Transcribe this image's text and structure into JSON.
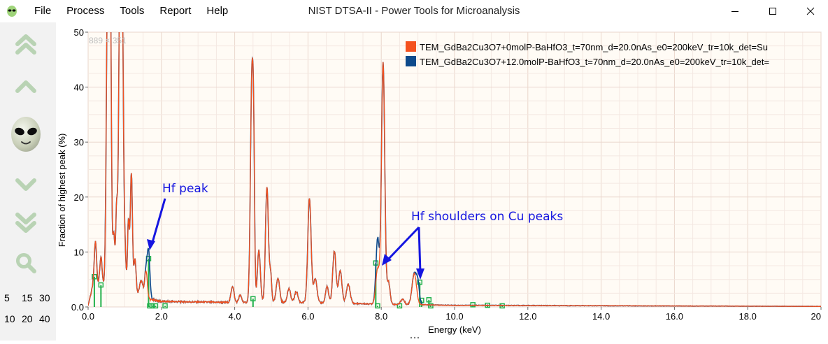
{
  "window": {
    "title": "NIST DTSA-II - Power Tools for Microanalysis",
    "app_icon": "alien-icon",
    "controls": [
      "minimize-icon",
      "maximize-icon",
      "close-icon"
    ]
  },
  "menu": [
    "File",
    "Process",
    "Tools",
    "Report",
    "Help"
  ],
  "sidebar": {
    "buttons": [
      "double-chevron-up-icon",
      "chevron-up-icon",
      "alien-face-icon",
      "chevron-down-icon",
      "double-chevron-down-icon",
      "zoom-icon"
    ],
    "scale_row1": [
      "5",
      "15",
      "30"
    ],
    "scale_row2": [
      "10",
      "20",
      "40"
    ]
  },
  "chart_data": {
    "type": "line",
    "title": "",
    "xlabel": "Energy (keV)",
    "ylabel": "Fraction of highest peak (%)",
    "xlim": [
      0,
      20
    ],
    "ylim": [
      0,
      50
    ],
    "x_ticks": [
      "0.0",
      "2.0",
      "4.0",
      "6.0",
      "8.0",
      "10.0",
      "12.0",
      "14.0",
      "16.0",
      "18.0",
      "20"
    ],
    "y_ticks": [
      "0.0",
      "10",
      "20",
      "30",
      "40",
      "50"
    ],
    "grid": true,
    "dims_label": "889 × 351",
    "legend_position": "top-right",
    "series": [
      {
        "name": "TEM_GdBa2Cu3O7+0molP-BaHfO3_t=70nm_d=20.0nAs_e0=200keV_tr=10k_det=Su",
        "color": "#f4511e",
        "peaks": [
          [
            0.2,
            7.5,
            0.03
          ],
          [
            0.35,
            5.0,
            0.03
          ],
          [
            0.53,
            52,
            0.035
          ],
          [
            0.6,
            62,
            0.03
          ],
          [
            0.7,
            10,
            0.03
          ],
          [
            0.78,
            15,
            0.025
          ],
          [
            0.86,
            50,
            0.03
          ],
          [
            0.93,
            54,
            0.03
          ],
          [
            1.0,
            9,
            0.03
          ],
          [
            1.1,
            13,
            0.025
          ],
          [
            1.18,
            22,
            0.03
          ],
          [
            1.28,
            6.5,
            0.03
          ],
          [
            1.45,
            3.0,
            0.05
          ],
          [
            1.58,
            5.0,
            0.035
          ],
          [
            3.94,
            3.0,
            0.04
          ],
          [
            4.15,
            1.3,
            0.04
          ],
          [
            4.47,
            41,
            0.04
          ],
          [
            4.52,
            17,
            0.025
          ],
          [
            4.66,
            9.5,
            0.04
          ],
          [
            4.88,
            21,
            0.04
          ],
          [
            4.98,
            5.0,
            0.03
          ],
          [
            5.18,
            4.5,
            0.045
          ],
          [
            5.48,
            2.5,
            0.045
          ],
          [
            5.68,
            2.0,
            0.045
          ],
          [
            6.04,
            19,
            0.045
          ],
          [
            6.2,
            4.5,
            0.045
          ],
          [
            6.52,
            3.0,
            0.04
          ],
          [
            6.72,
            9.5,
            0.045
          ],
          [
            6.88,
            6.0,
            0.045
          ],
          [
            7.1,
            3.5,
            0.05
          ],
          [
            7.9,
            6.5,
            0.05
          ],
          [
            8.05,
            44,
            0.045
          ],
          [
            8.2,
            4.0,
            0.04
          ],
          [
            8.58,
            1.0,
            0.05
          ],
          [
            8.9,
            5.7,
            0.06
          ]
        ],
        "baseline": [
          [
            0,
            0.3
          ],
          [
            0.15,
            4.5
          ],
          [
            0.4,
            4.0
          ],
          [
            1.5,
            1.6
          ],
          [
            2.0,
            1.0
          ],
          [
            4.0,
            0.8
          ],
          [
            6.0,
            0.8
          ],
          [
            8.0,
            0.5
          ],
          [
            10.0,
            0.3
          ],
          [
            15.0,
            0.2
          ],
          [
            20.0,
            0.1
          ]
        ]
      },
      {
        "name": "TEM_GdBa2Cu3O7+12.0molP-BaHfO3_t=70nm_d=20.0nAs_e0=200keV_tr=10k_det=",
        "color": "#0d4a8c",
        "peaks": [
          [
            1.65,
            8.5,
            0.035
          ],
          [
            7.9,
            5.5,
            0.04
          ],
          [
            9.0,
            3.5,
            0.04
          ]
        ]
      }
    ],
    "kline_markers": [
      [
        0.17,
        5.5
      ],
      [
        0.35,
        4.0
      ],
      [
        1.65,
        8.8
      ],
      [
        1.68,
        0.2
      ],
      [
        1.75,
        0.2
      ],
      [
        1.84,
        0.2
      ],
      [
        2.1,
        0.2
      ],
      [
        4.5,
        1.5
      ],
      [
        7.85,
        8.0
      ],
      [
        7.9,
        0.2
      ],
      [
        8.5,
        0.2
      ],
      [
        9.05,
        4.5
      ],
      [
        9.1,
        1.2
      ],
      [
        9.3,
        1.3
      ],
      [
        9.35,
        0.2
      ],
      [
        10.5,
        0.4
      ],
      [
        10.9,
        0.3
      ],
      [
        11.3,
        0.2
      ]
    ],
    "annotations": [
      {
        "text": "Hf peak",
        "color": "#1515e0"
      },
      {
        "text": "Hf shoulders on Cu peaks",
        "color": "#1515e0"
      }
    ]
  }
}
